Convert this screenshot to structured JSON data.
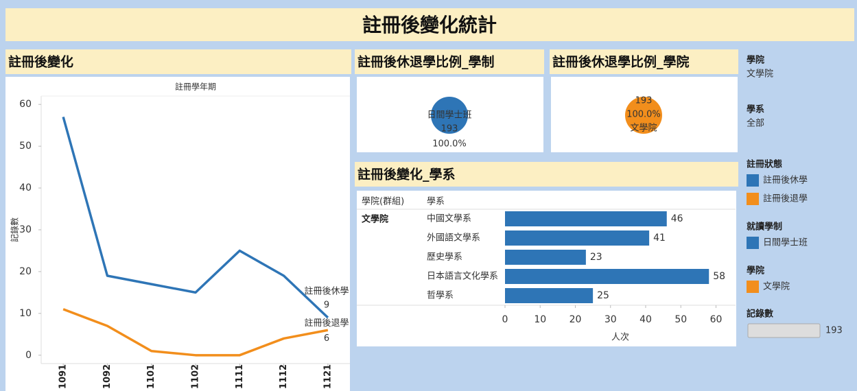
{
  "title": "註冊後變化統計",
  "chart_data": [
    {
      "type": "line",
      "title": "註冊後變化",
      "subtitle": "註冊學年期",
      "y_label": "記錄數",
      "categories": [
        "1091",
        "1092",
        "1101",
        "1102",
        "1111",
        "1112",
        "1121"
      ],
      "series": [
        {
          "name": "註冊後休學",
          "color": "#2e75b6",
          "values": [
            57,
            19,
            17,
            15,
            25,
            19,
            9
          ]
        },
        {
          "name": "註冊後退學",
          "color": "#f28e1c",
          "values": [
            11,
            7,
            1,
            0,
            0,
            4,
            6
          ]
        }
      ],
      "ylim": [
        -2,
        62
      ],
      "yticks": [
        0,
        10,
        20,
        30,
        40,
        50,
        60
      ]
    },
    {
      "type": "pie",
      "title": "註冊後休退學比例_學制",
      "categories": [
        "日間學士班"
      ],
      "counts": [
        193
      ],
      "values": [
        100
      ],
      "value_labels": [
        "100.0%"
      ],
      "colors": [
        "#2e75b6"
      ]
    },
    {
      "type": "pie",
      "title": "註冊後休退學比例_學院",
      "categories": [
        "文學院"
      ],
      "counts": [
        193
      ],
      "values": [
        100
      ],
      "value_labels": [
        "100.0%"
      ],
      "colors": [
        "#f28e1c"
      ]
    },
    {
      "type": "barh",
      "title": "註冊後變化_學系",
      "column_headers": [
        "學院(群組)",
        "學系"
      ],
      "group": "文學院",
      "categories": [
        "中國文學系",
        "外國語文學系",
        "歷史學系",
        "日本語言文化學系",
        "哲學系"
      ],
      "values": [
        46,
        41,
        23,
        58,
        25
      ],
      "color": "#2e75b6",
      "xlim": [
        0,
        64
      ],
      "xticks": [
        0,
        10,
        20,
        30,
        40,
        50,
        60
      ],
      "x_label": "人次"
    }
  ],
  "filters": [
    {
      "label": "學院",
      "value": "文學院"
    },
    {
      "label": "學系",
      "value": "全部"
    }
  ],
  "legends": [
    {
      "title": "註冊狀態",
      "items": [
        {
          "name": "註冊後休學",
          "color": "#2e75b6"
        },
        {
          "name": "註冊後退學",
          "color": "#f28e1c"
        }
      ]
    },
    {
      "title": "就讀學制",
      "items": [
        {
          "name": "日間學士班",
          "color": "#2e75b6"
        }
      ]
    },
    {
      "title": "學院",
      "items": [
        {
          "name": "文學院",
          "color": "#f28e1c"
        }
      ]
    }
  ],
  "record_count": {
    "title": "記錄數",
    "value": 193
  }
}
